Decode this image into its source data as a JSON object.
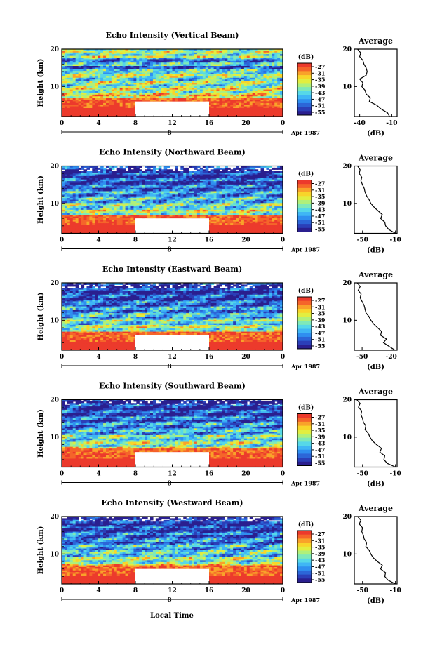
{
  "figure": {
    "x_axis_label": "Local Time",
    "date_label": "Apr 1987",
    "day_label": "8",
    "colorbar_unit": "(dB)",
    "average_title": "Average",
    "average_xlabel": "(dB)",
    "colormap": [
      "#2a1f8f",
      "#2b3fb8",
      "#2c66d8",
      "#2f8ff0",
      "#3fb6f5",
      "#56d8e8",
      "#7fe9b8",
      "#b0f07a",
      "#e2ee40",
      "#f8d52a",
      "#f9a22a",
      "#f5652a",
      "#ec3a2c"
    ]
  },
  "chart_data": [
    {
      "type": "heatmap",
      "title": "Echo Intensity (Vertical Beam)",
      "ylabel": "Height (km)",
      "x_ticks": [
        "0",
        "4",
        "8",
        "12",
        "16",
        "20",
        "0"
      ],
      "y_ticks": [
        "20",
        "10"
      ],
      "xlim": [
        0,
        24
      ],
      "ylim": [
        2,
        20
      ],
      "colorbar_ticks": [
        "-27",
        "-31",
        "-35",
        "-39",
        "-43",
        "-47",
        "-51",
        "-55"
      ],
      "missing_region": {
        "x": [
          8,
          16
        ],
        "y": [
          2,
          6
        ]
      },
      "average": {
        "x_ticks": [
          "-40",
          "-10"
        ],
        "xlim": [
          -45,
          -5
        ],
        "height": [
          2,
          3,
          4,
          5,
          6,
          7,
          8,
          9,
          10,
          11,
          12,
          13,
          14,
          15,
          16,
          17,
          18,
          19,
          20
        ],
        "value": [
          -12,
          -14,
          -20,
          -24,
          -31,
          -30,
          -34,
          -35,
          -38,
          -37,
          -40,
          -34,
          -33,
          -34,
          -36,
          -37,
          -40,
          -39,
          -42
        ]
      }
    },
    {
      "type": "heatmap",
      "title": "Echo Intensity (Northward Beam)",
      "ylabel": "Height (km)",
      "x_ticks": [
        "0",
        "4",
        "8",
        "12",
        "16",
        "20",
        "0"
      ],
      "y_ticks": [
        "20",
        "10"
      ],
      "xlim": [
        0,
        24
      ],
      "ylim": [
        2,
        20
      ],
      "colorbar_ticks": [
        "-27",
        "-31",
        "-35",
        "-39",
        "-43",
        "-47",
        "-51",
        "-55"
      ],
      "missing_region": {
        "x": [
          8,
          16
        ],
        "y": [
          2,
          6
        ]
      },
      "average": {
        "x_ticks": [
          "-50",
          "-10"
        ],
        "xlim": [
          -60,
          -8
        ],
        "height": [
          2,
          3,
          4,
          5,
          6,
          7,
          8,
          9,
          10,
          11,
          12,
          13,
          14,
          15,
          16,
          17,
          18,
          19,
          20
        ],
        "value": [
          -10,
          -18,
          -22,
          -23,
          -28,
          -26,
          -31,
          -36,
          -40,
          -42,
          -45,
          -47,
          -48,
          -50,
          -52,
          -51,
          -54,
          -53,
          -56
        ]
      }
    },
    {
      "type": "heatmap",
      "title": "Echo Intensity (Eastward Beam)",
      "ylabel": "Height (km)",
      "x_ticks": [
        "0",
        "4",
        "8",
        "12",
        "16",
        "20",
        "0"
      ],
      "y_ticks": [
        "20",
        "10"
      ],
      "xlim": [
        0,
        24
      ],
      "ylim": [
        2,
        20
      ],
      "colorbar_ticks": [
        "-27",
        "-31",
        "-35",
        "-39",
        "-43",
        "-47",
        "-51",
        "-55"
      ],
      "missing_region": {
        "x": [
          8,
          16
        ],
        "y": [
          2,
          6
        ]
      },
      "average": {
        "x_ticks": [
          "-50",
          "-20"
        ],
        "xlim": [
          -58,
          -14
        ],
        "height": [
          2,
          3,
          4,
          5,
          6,
          7,
          8,
          9,
          10,
          11,
          12,
          13,
          14,
          15,
          16,
          17,
          18,
          19,
          20
        ],
        "value": [
          -16,
          -22,
          -28,
          -25,
          -31,
          -30,
          -34,
          -38,
          -41,
          -43,
          -46,
          -47,
          -48,
          -50,
          -52,
          -51,
          -54,
          -52,
          -55
        ]
      }
    },
    {
      "type": "heatmap",
      "title": "Echo Intensity (Southward Beam)",
      "ylabel": "Height (km)",
      "x_ticks": [
        "0",
        "4",
        "8",
        "12",
        "16",
        "20",
        "0"
      ],
      "y_ticks": [
        "20",
        "10"
      ],
      "xlim": [
        0,
        24
      ],
      "ylim": [
        2,
        20
      ],
      "colorbar_ticks": [
        "-27",
        "-31",
        "-35",
        "-39",
        "-43",
        "-47",
        "-51",
        "-55"
      ],
      "missing_region": {
        "x": [
          8,
          16
        ],
        "y": [
          2,
          6
        ]
      },
      "average": {
        "x_ticks": [
          "-50",
          "-10"
        ],
        "xlim": [
          -60,
          -8
        ],
        "height": [
          2,
          3,
          4,
          5,
          6,
          7,
          8,
          9,
          10,
          11,
          12,
          13,
          14,
          15,
          16,
          17,
          18,
          19,
          20
        ],
        "value": [
          -10,
          -20,
          -24,
          -23,
          -29,
          -27,
          -33,
          -38,
          -41,
          -43,
          -47,
          -46,
          -49,
          -50,
          -52,
          -51,
          -55,
          -53,
          -57
        ]
      }
    },
    {
      "type": "heatmap",
      "title": "Echo Intensity (Westward Beam)",
      "ylabel": "Height (km)",
      "x_ticks": [
        "0",
        "4",
        "8",
        "12",
        "16",
        "20",
        "0"
      ],
      "y_ticks": [
        "20",
        "10"
      ],
      "xlim": [
        0,
        24
      ],
      "ylim": [
        2,
        20
      ],
      "colorbar_ticks": [
        "-27",
        "-31",
        "-35",
        "-39",
        "-43",
        "-47",
        "-51",
        "-55"
      ],
      "missing_region": {
        "x": [
          8,
          16
        ],
        "y": [
          2,
          6
        ]
      },
      "average": {
        "x_ticks": [
          "-50",
          "-10"
        ],
        "xlim": [
          -60,
          -8
        ],
        "height": [
          2,
          3,
          4,
          5,
          6,
          7,
          8,
          9,
          10,
          11,
          12,
          13,
          14,
          15,
          16,
          17,
          18,
          19,
          20
        ],
        "value": [
          -10,
          -19,
          -23,
          -22,
          -28,
          -26,
          -32,
          -37,
          -40,
          -42,
          -46,
          -45,
          -48,
          -49,
          -51,
          -50,
          -54,
          -52,
          -56
        ]
      }
    }
  ]
}
